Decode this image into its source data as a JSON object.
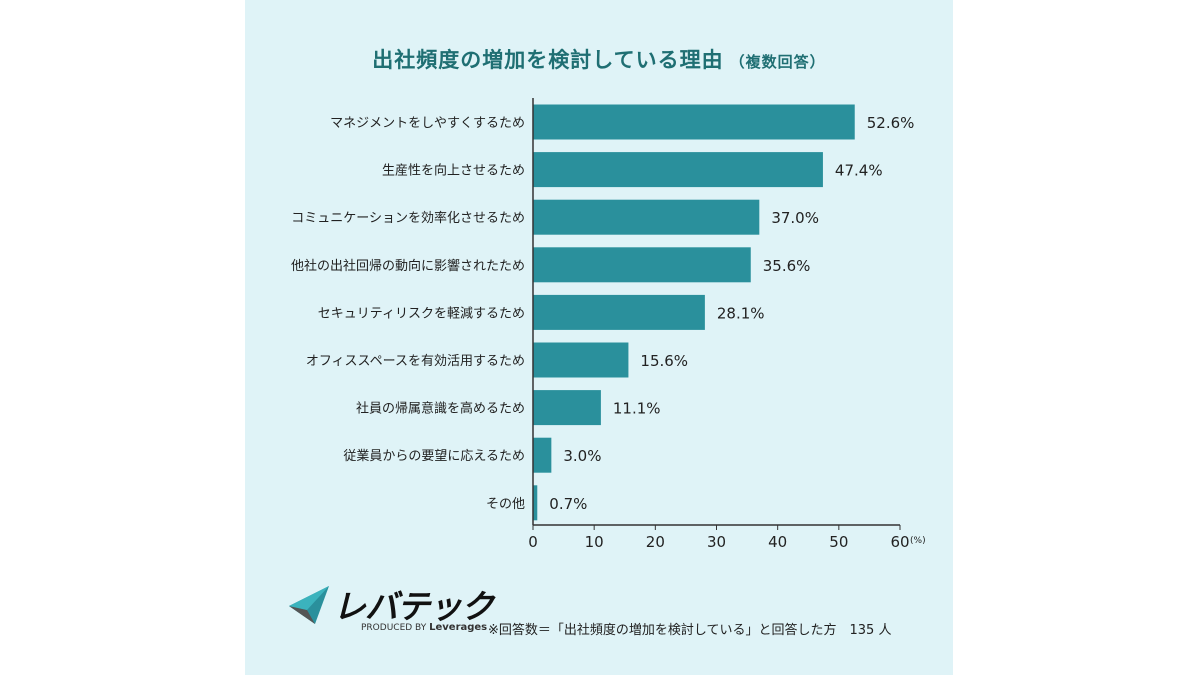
{
  "title": {
    "main": "出社頻度の増加を検討している理由",
    "note": "（複数回答）"
  },
  "logo": {
    "name": "レバテック",
    "produced_by": "PRODUCED BY",
    "company": "Leverages"
  },
  "footnote": "※回答数＝「出社頻度の増加を検討している」と回答した方　135 人",
  "colors": {
    "background": "#dff3f7",
    "bar": "#2a909c",
    "title": "#1f6f73"
  },
  "chart_data": {
    "type": "bar",
    "orientation": "horizontal",
    "categories": [
      "マネジメントをしやすくするため",
      "生産性を向上させるため",
      "コミュニケーションを効率化させるため",
      "他社の出社回帰の動向に影響されたため",
      "セキュリティリスクを軽減するため",
      "オフィススペースを有効活用するため",
      "社員の帰属意識を高めるため",
      "従業員からの要望に応えるため",
      "その他"
    ],
    "values": [
      52.6,
      47.4,
      37.0,
      35.6,
      28.1,
      15.6,
      11.1,
      3.0,
      0.7
    ],
    "value_labels": [
      "52.6%",
      "47.4%",
      "37.0%",
      "35.6%",
      "28.1%",
      "15.6%",
      "11.1%",
      "3.0%",
      "0.7%"
    ],
    "xlim": [
      0,
      60
    ],
    "xticks": [
      0,
      10,
      20,
      30,
      40,
      50,
      60
    ],
    "xtick_labels": [
      "0",
      "10",
      "20",
      "30",
      "40",
      "50",
      "60"
    ],
    "x_unit": "(%)",
    "grid": false,
    "legend": "none"
  }
}
